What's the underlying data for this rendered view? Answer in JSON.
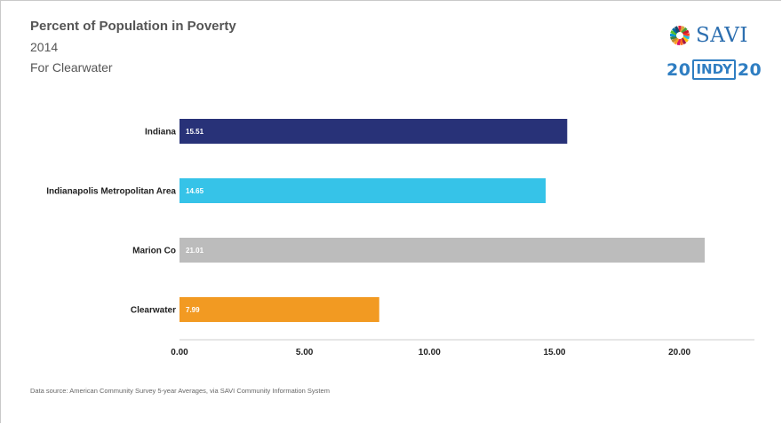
{
  "header": {
    "title": "Percent of Population in Poverty",
    "year": "2014",
    "location": "For Clearwater"
  },
  "logos": {
    "savi_text": "SAVI",
    "indy_left": "20",
    "indy_mid": "INDY",
    "indy_right": "20"
  },
  "footer": {
    "source": "Data source: American Community Survey 5-year Averages, via SAVI Community Information System"
  },
  "chart_data": {
    "type": "bar",
    "orientation": "horizontal",
    "categories": [
      "Indiana",
      "Indianapolis Metropolitan Area",
      "Marion Co",
      "Clearwater"
    ],
    "values": [
      15.51,
      14.65,
      21.01,
      7.99
    ],
    "value_labels": [
      "15.51",
      "14.65",
      "21.01",
      "7.99"
    ],
    "colors": [
      "#283278",
      "#36c3e8",
      "#bcbcbc",
      "#f29a22"
    ],
    "xlim": [
      0,
      23
    ],
    "xticks": [
      0,
      5,
      10,
      15,
      20
    ],
    "xtick_labels": [
      "0.00",
      "5.00",
      "10.00",
      "15.00",
      "20.00"
    ],
    "grid": false,
    "legend": "none"
  }
}
